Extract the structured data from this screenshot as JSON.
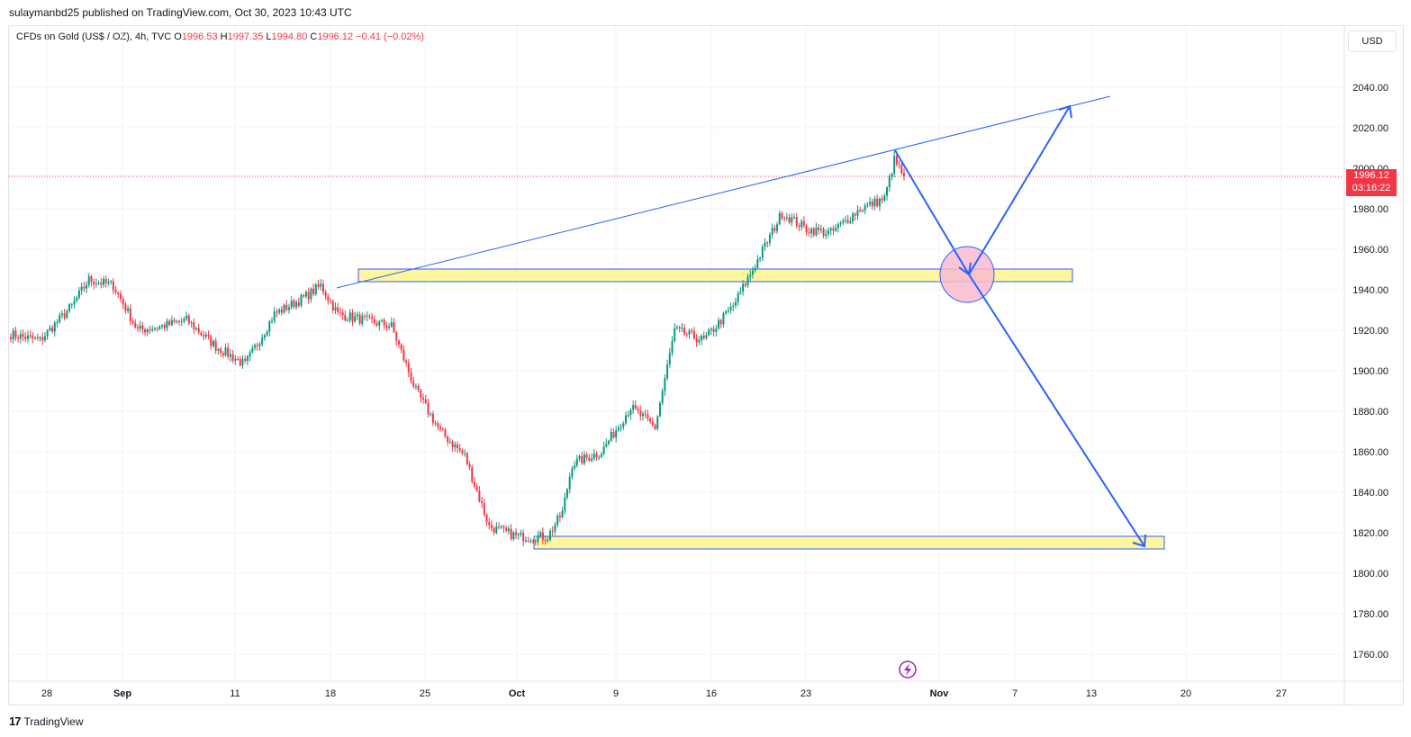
{
  "header": {
    "publish_line": "sulaymanbd25 published on TradingView.com, Oct 30, 2023 10:43 UTC"
  },
  "legend": {
    "symbol": "CFDs on Gold (US$ / OZ), 4h, TVC",
    "o_label": "O",
    "o_value": "1996.53",
    "h_label": "H",
    "h_value": "1997.35",
    "l_label": "L",
    "l_value": "1994.80",
    "c_label": "C",
    "c_value": "1996.12",
    "change": "−0.41 (−0.02%)"
  },
  "currency": "USD",
  "price_tag": {
    "price": "1996.12",
    "countdown": "03:16:22"
  },
  "footer": {
    "logo": "17",
    "brand": "TradingView"
  },
  "colors": {
    "up": "#089981",
    "down": "#f23645",
    "drawing": "#2962ff",
    "zone": "#fff59d",
    "ellipse": "#f8bbd0"
  },
  "chart_data": {
    "type": "candlestick",
    "y_axis": {
      "ticks": [
        "2040.00",
        "2020.00",
        "2000.00",
        "1980.00",
        "1960.00",
        "1940.00",
        "1920.00",
        "1900.00",
        "1880.00",
        "1860.00",
        "1840.00",
        "1820.00",
        "1800.00",
        "1780.00",
        "1760.00"
      ],
      "range": [
        1752,
        2060
      ]
    },
    "x_axis": {
      "ticks": [
        "28",
        "Sep",
        "11",
        "18",
        "25",
        "Oct",
        "9",
        "16",
        "23",
        "Nov",
        "7",
        "13",
        "20",
        "27"
      ]
    },
    "last_price": 1996.12,
    "anchors": [
      {
        "i": 0,
        "p": 1918
      },
      {
        "i": 12,
        "p": 1915
      },
      {
        "i": 25,
        "p": 1932
      },
      {
        "i": 32,
        "p": 1945
      },
      {
        "i": 42,
        "p": 1942
      },
      {
        "i": 52,
        "p": 1920
      },
      {
        "i": 62,
        "p": 1922
      },
      {
        "i": 72,
        "p": 1925
      },
      {
        "i": 84,
        "p": 1912
      },
      {
        "i": 96,
        "p": 1903
      },
      {
        "i": 108,
        "p": 1928
      },
      {
        "i": 120,
        "p": 1936
      },
      {
        "i": 127,
        "p": 1942
      },
      {
        "i": 134,
        "p": 1928
      },
      {
        "i": 145,
        "p": 1925
      },
      {
        "i": 156,
        "p": 1922
      },
      {
        "i": 166,
        "p": 1890
      },
      {
        "i": 176,
        "p": 1870
      },
      {
        "i": 186,
        "p": 1858
      },
      {
        "i": 196,
        "p": 1823
      },
      {
        "i": 208,
        "p": 1818
      },
      {
        "i": 220,
        "p": 1818
      },
      {
        "i": 226,
        "p": 1830
      },
      {
        "i": 230,
        "p": 1854
      },
      {
        "i": 242,
        "p": 1860
      },
      {
        "i": 254,
        "p": 1882
      },
      {
        "i": 264,
        "p": 1872
      },
      {
        "i": 272,
        "p": 1920
      },
      {
        "i": 284,
        "p": 1915
      },
      {
        "i": 296,
        "p": 1932
      },
      {
        "i": 304,
        "p": 1950
      },
      {
        "i": 316,
        "p": 1978
      },
      {
        "i": 326,
        "p": 1970
      },
      {
        "i": 336,
        "p": 1968
      },
      {
        "i": 348,
        "p": 1980
      },
      {
        "i": 358,
        "p": 1985
      },
      {
        "i": 362,
        "p": 2004
      },
      {
        "i": 366,
        "p": 1996
      }
    ]
  }
}
